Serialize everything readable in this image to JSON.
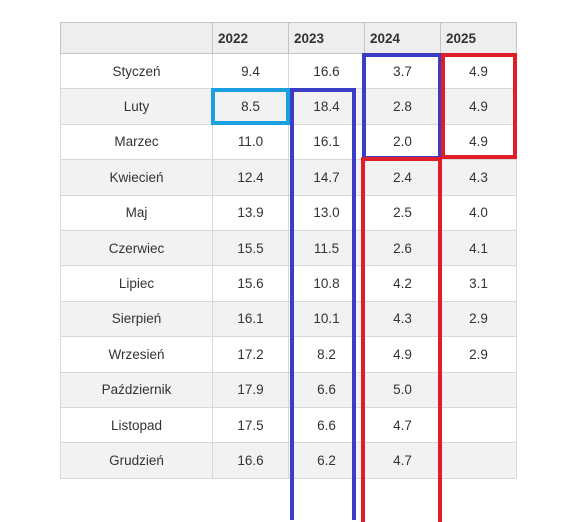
{
  "table": {
    "headers": [
      "",
      "2022",
      "2023",
      "2024",
      "2025"
    ],
    "rows": [
      [
        "Styczeń",
        "9.4",
        "16.6",
        "3.7",
        "4.9"
      ],
      [
        "Luty",
        "8.5",
        "18.4",
        "2.8",
        "4.9"
      ],
      [
        "Marzec",
        "11.0",
        "16.1",
        "2.0",
        "4.9"
      ],
      [
        "Kwiecień",
        "12.4",
        "14.7",
        "2.4",
        "4.3"
      ],
      [
        "Maj",
        "13.9",
        "13.0",
        "2.5",
        "4.0"
      ],
      [
        "Czerwiec",
        "15.5",
        "11.5",
        "2.6",
        "4.1"
      ],
      [
        "Lipiec",
        "15.6",
        "10.8",
        "4.2",
        "3.1"
      ],
      [
        "Sierpień",
        "16.1",
        "10.1",
        "4.3",
        "2.9"
      ],
      [
        "Wrzesień",
        "17.2",
        "8.2",
        "4.9",
        "2.9"
      ],
      [
        "Październik",
        "17.9",
        "6.6",
        "5.0",
        ""
      ],
      [
        "Listopad",
        "17.5",
        "6.6",
        "4.7",
        ""
      ],
      [
        "Grudzień",
        "16.6",
        "6.2",
        "4.7",
        ""
      ]
    ]
  },
  "highlight_colors": {
    "cyan": "#1a9fe0",
    "indigo": "#3b3dc4",
    "red": "#e01e2a"
  }
}
